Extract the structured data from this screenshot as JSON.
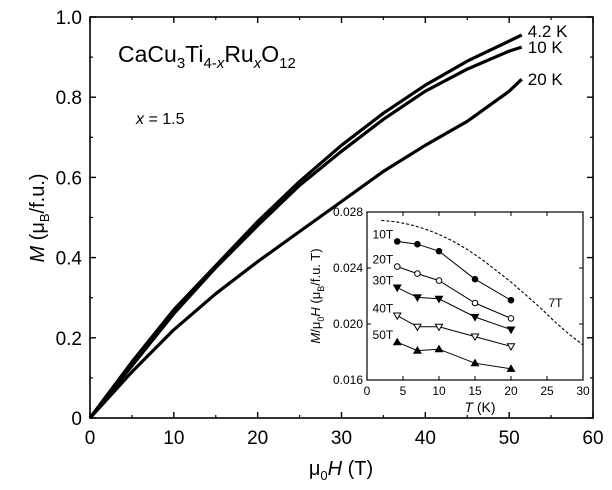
{
  "chart_data": [
    {
      "type": "line",
      "title": "",
      "xlabel": "μ₀H (T)",
      "ylabel": "M (μB/f.u.)",
      "xlim": [
        0,
        60
      ],
      "ylim": [
        0,
        1.0
      ],
      "x_ticks": [
        "0",
        "10",
        "20",
        "30",
        "40",
        "50",
        "60"
      ],
      "y_ticks": [
        "0",
        "0.2",
        "0.4",
        "0.6",
        "0.8",
        "1.0"
      ],
      "grid": false,
      "annotations": {
        "compound": "CaCu3Ti4-xRuxO12",
        "composition": "x = 1.5"
      },
      "series": [
        {
          "name": "4.2 K",
          "x": [
            0,
            5,
            10,
            15,
            20,
            25,
            30,
            35,
            40,
            45,
            50,
            51.5
          ],
          "y": [
            0,
            0.14,
            0.27,
            0.38,
            0.49,
            0.59,
            0.68,
            0.76,
            0.83,
            0.89,
            0.94,
            0.955
          ]
        },
        {
          "name": "10 K",
          "x": [
            0,
            5,
            10,
            15,
            20,
            25,
            30,
            35,
            40,
            45,
            50,
            51.5
          ],
          "y": [
            0,
            0.13,
            0.26,
            0.375,
            0.48,
            0.58,
            0.665,
            0.745,
            0.815,
            0.87,
            0.915,
            0.925
          ]
        },
        {
          "name": "20 K",
          "x": [
            0,
            5,
            10,
            15,
            20,
            25,
            30,
            35,
            40,
            45,
            50,
            51.5
          ],
          "y": [
            0,
            0.115,
            0.22,
            0.31,
            0.39,
            0.465,
            0.54,
            0.615,
            0.68,
            0.74,
            0.815,
            0.845
          ]
        }
      ]
    },
    {
      "type": "line",
      "title": "",
      "xlabel": "T (K)",
      "ylabel": "M/μ₀H (μB/f.u. T)",
      "xlim": [
        0,
        30
      ],
      "ylim": [
        0.016,
        0.028
      ],
      "x_ticks": [
        "0",
        "5",
        "10",
        "15",
        "20",
        "25",
        "30"
      ],
      "y_ticks": [
        "0.016",
        "0.020",
        "0.024",
        "0.028"
      ],
      "series": [
        {
          "name": "10T",
          "marker": "filled-circle",
          "x": [
            4.2,
            7,
            10,
            15,
            20
          ],
          "y": [
            0.0259,
            0.0257,
            0.0252,
            0.0232,
            0.0217
          ]
        },
        {
          "name": "20T",
          "marker": "open-circle",
          "x": [
            4.2,
            7,
            10,
            15,
            20
          ],
          "y": [
            0.0241,
            0.0236,
            0.0231,
            0.0215,
            0.0204
          ]
        },
        {
          "name": "30T",
          "marker": "filled-triangle-down",
          "x": [
            4.2,
            7,
            10,
            15,
            20
          ],
          "y": [
            0.0226,
            0.0219,
            0.0218,
            0.0205,
            0.0196
          ]
        },
        {
          "name": "40T",
          "marker": "open-triangle-down",
          "x": [
            4.2,
            7,
            10,
            15,
            20
          ],
          "y": [
            0.0206,
            0.0198,
            0.0198,
            0.0191,
            0.0184
          ]
        },
        {
          "name": "50T",
          "marker": "filled-triangle-up",
          "x": [
            4.2,
            7,
            10,
            15,
            20
          ],
          "y": [
            0.0187,
            0.0181,
            0.0182,
            0.0172,
            0.0168
          ]
        },
        {
          "name": "7T",
          "style": "dashed",
          "x": [
            2,
            4,
            6,
            8,
            10,
            12,
            14,
            16,
            18,
            20,
            22,
            24,
            26,
            28,
            30
          ],
          "y": [
            0.0274,
            0.0273,
            0.0271,
            0.0268,
            0.0264,
            0.0259,
            0.0253,
            0.0246,
            0.0238,
            0.023,
            0.0221,
            0.0212,
            0.0202,
            0.0193,
            0.0185
          ]
        }
      ]
    }
  ]
}
